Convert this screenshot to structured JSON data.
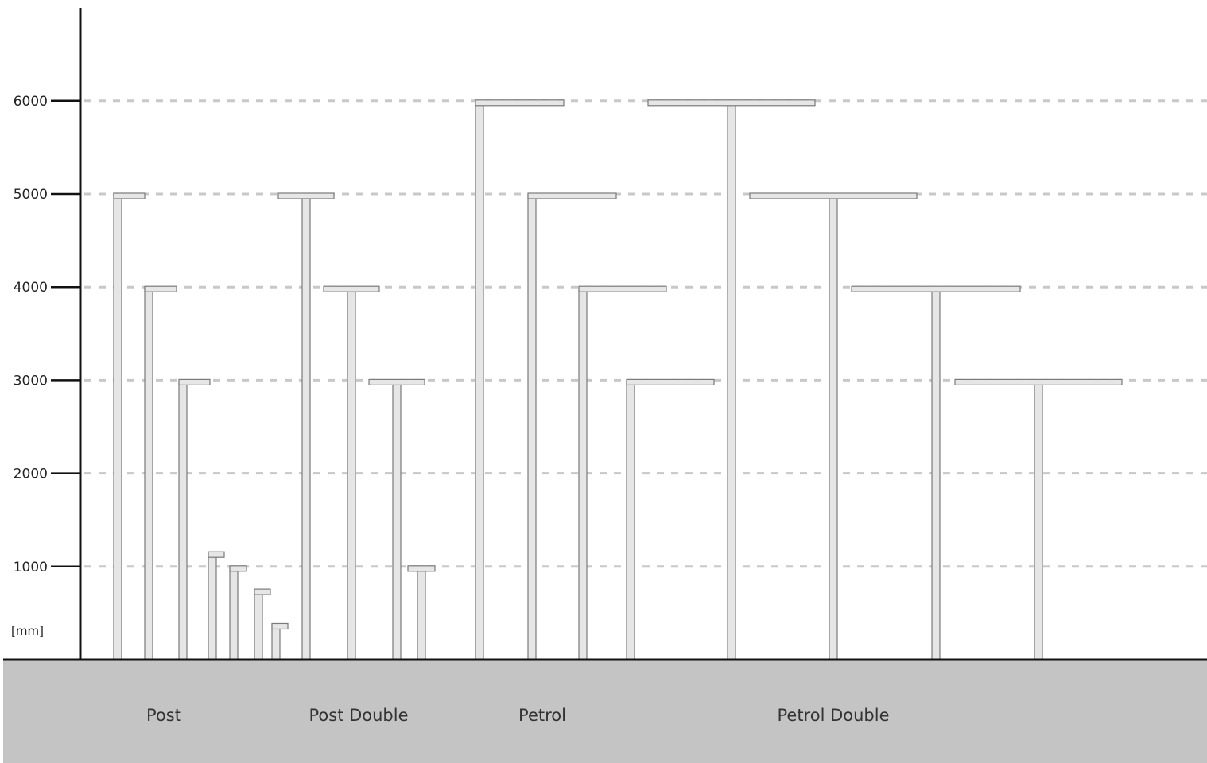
{
  "chart_data": {
    "type": "diagram",
    "unit": "[mm]",
    "y_ticks": [
      1000,
      2000,
      3000,
      4000,
      5000,
      6000
    ],
    "y_range": [
      0,
      6000
    ],
    "grid": "dashed horizontal",
    "groups": [
      {
        "label": "Post",
        "poles": [
          {
            "height": 5000,
            "arm": "right"
          },
          {
            "height": 4000,
            "arm": "right"
          },
          {
            "height": 3000,
            "arm": "right"
          },
          {
            "height": 1150,
            "arm": "right"
          },
          {
            "height": 1000,
            "arm": "right"
          },
          {
            "height": 750,
            "arm": "right"
          },
          {
            "height": 380,
            "arm": "right"
          }
        ]
      },
      {
        "label": "Post Double",
        "poles": [
          {
            "height": 5000,
            "arm": "double"
          },
          {
            "height": 4000,
            "arm": "double"
          },
          {
            "height": 3000,
            "arm": "double"
          },
          {
            "height": 1000,
            "arm": "double"
          }
        ]
      },
      {
        "label": "Petrol",
        "poles": [
          {
            "height": 6000,
            "arm": "right"
          },
          {
            "height": 5000,
            "arm": "right"
          },
          {
            "height": 4000,
            "arm": "right"
          },
          {
            "height": 3000,
            "arm": "right"
          }
        ]
      },
      {
        "label": "Petrol Double",
        "poles": [
          {
            "height": 6000,
            "arm": "double"
          },
          {
            "height": 5000,
            "arm": "double"
          },
          {
            "height": 4000,
            "arm": "double"
          },
          {
            "height": 3000,
            "arm": "double"
          }
        ]
      }
    ]
  }
}
